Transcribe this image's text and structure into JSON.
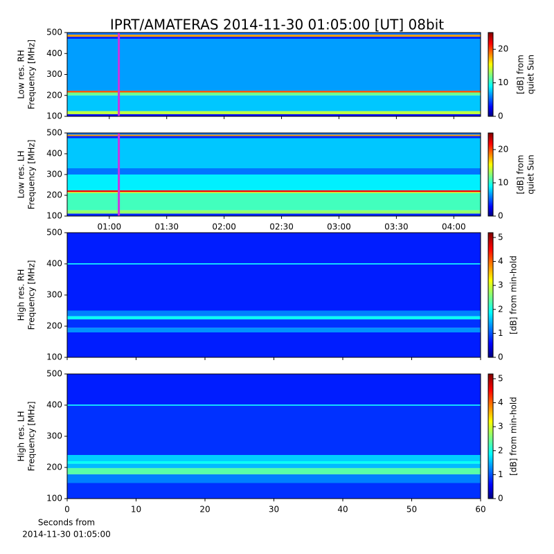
{
  "chart_data": [
    {
      "type": "heatmap",
      "title": "IPRT/AMATERAS 2014-11-30 01:05:00 [UT]   08bit",
      "ylabel": [
        "Low res. RH",
        "Frequency [MHz]"
      ],
      "xlim": [
        38,
        254
      ],
      "xticks": [
        60,
        90,
        120,
        150,
        180,
        210,
        240
      ],
      "show_xticklabels": false,
      "ylim": [
        100,
        500
      ],
      "yticks": [
        100,
        200,
        300,
        400,
        500
      ],
      "clim": [
        0,
        25
      ],
      "cticks": [
        0,
        10,
        20
      ],
      "clabel": [
        "[dB] from",
        "quiet Sun"
      ],
      "marker": 65,
      "marker_color": "#d030e0",
      "bands": [
        {
          "range": [
            100,
            110
          ],
          "value": 3
        },
        {
          "range": [
            110,
            125
          ],
          "value": 14
        },
        {
          "range": [
            125,
            200
          ],
          "value": 8
        },
        {
          "range": [
            200,
            214
          ],
          "value": 12
        },
        {
          "range": [
            214,
            222
          ],
          "value": 20
        },
        {
          "range": [
            222,
            470
          ],
          "value": 7
        },
        {
          "range": [
            470,
            480
          ],
          "value": 4
        },
        {
          "range": [
            480,
            490
          ],
          "value": 18
        },
        {
          "range": [
            490,
            500
          ],
          "value": 6
        }
      ]
    },
    {
      "type": "heatmap",
      "ylabel": [
        "Low res. LH",
        "Frequency [MHz]"
      ],
      "xlim": [
        38,
        254
      ],
      "xticks": [
        {
          "value": 60,
          "label": "01:00"
        },
        {
          "value": 90,
          "label": "01:30"
        },
        {
          "value": 120,
          "label": "02:00"
        },
        {
          "value": 150,
          "label": "02:30"
        },
        {
          "value": 180,
          "label": "03:00"
        },
        {
          "value": 210,
          "label": "03:30"
        },
        {
          "value": 240,
          "label": "04:00"
        }
      ],
      "show_xticklabels": true,
      "ylim": [
        100,
        500
      ],
      "yticks": [
        100,
        200,
        300,
        400,
        500
      ],
      "clim": [
        0,
        25
      ],
      "cticks": [
        0,
        10,
        20
      ],
      "clabel": [
        "[dB] from",
        "quiet Sun"
      ],
      "marker": 65,
      "marker_color": "#d030e0",
      "bands": [
        {
          "range": [
            100,
            112
          ],
          "value": 4
        },
        {
          "range": [
            112,
            128
          ],
          "value": 13
        },
        {
          "range": [
            128,
            210
          ],
          "value": 11
        },
        {
          "range": [
            210,
            216
          ],
          "value": 14
        },
        {
          "range": [
            216,
            224
          ],
          "value": 22
        },
        {
          "range": [
            224,
            300
          ],
          "value": 9
        },
        {
          "range": [
            300,
            330
          ],
          "value": 6
        },
        {
          "range": [
            330,
            475
          ],
          "value": 8
        },
        {
          "range": [
            475,
            485
          ],
          "value": 4
        },
        {
          "range": [
            485,
            492
          ],
          "value": 18
        },
        {
          "range": [
            492,
            500
          ],
          "value": 6
        }
      ]
    },
    {
      "type": "heatmap",
      "ylabel": [
        "High res. RH",
        "Frequency [MHz]"
      ],
      "xlim": [
        0,
        60
      ],
      "xticks": [
        0,
        10,
        20,
        30,
        40,
        50,
        60
      ],
      "show_xticklabels": false,
      "ylim": [
        100,
        500
      ],
      "yticks": [
        100,
        200,
        300,
        400,
        500
      ],
      "clim": [
        0,
        5.2
      ],
      "cticks": [
        0,
        1,
        2,
        3,
        4,
        5
      ],
      "clabel": [
        "[dB] from min-hold"
      ],
      "bands": [
        {
          "range": [
            100,
            180
          ],
          "value": 0.8
        },
        {
          "range": [
            180,
            195
          ],
          "value": 1.4
        },
        {
          "range": [
            195,
            222
          ],
          "value": 0.9
        },
        {
          "range": [
            222,
            232
          ],
          "value": 2
        },
        {
          "range": [
            232,
            250
          ],
          "value": 1.3
        },
        {
          "range": [
            250,
            398
          ],
          "value": 0.8
        },
        {
          "range": [
            398,
            402
          ],
          "value": 1.8
        },
        {
          "range": [
            402,
            500
          ],
          "value": 0.8
        }
      ]
    },
    {
      "type": "heatmap",
      "ylabel": [
        "High res. LH",
        "Frequency [MHz]"
      ],
      "xlim": [
        0,
        60
      ],
      "xticks": [
        0,
        10,
        20,
        30,
        40,
        50,
        60
      ],
      "show_xticklabels": true,
      "xlabel": [
        "Seconds from",
        "2014-11-30 01:05:00"
      ],
      "ylim": [
        100,
        500
      ],
      "yticks": [
        100,
        200,
        300,
        400,
        500
      ],
      "clim": [
        0,
        5.2
      ],
      "cticks": [
        0,
        1,
        2,
        3,
        4,
        5
      ],
      "clabel": [
        "[dB] from min-hold"
      ],
      "bands": [
        {
          "range": [
            100,
            150
          ],
          "value": 0.9
        },
        {
          "range": [
            150,
            178
          ],
          "value": 1.3
        },
        {
          "range": [
            178,
            198
          ],
          "value": 2.4
        },
        {
          "range": [
            198,
            212
          ],
          "value": 1.6
        },
        {
          "range": [
            212,
            220
          ],
          "value": 2
        },
        {
          "range": [
            220,
            240
          ],
          "value": 1.7
        },
        {
          "range": [
            240,
            398
          ],
          "value": 0.9
        },
        {
          "range": [
            398,
            402
          ],
          "value": 1.8
        },
        {
          "range": [
            402,
            500
          ],
          "value": 0.8
        }
      ]
    }
  ]
}
